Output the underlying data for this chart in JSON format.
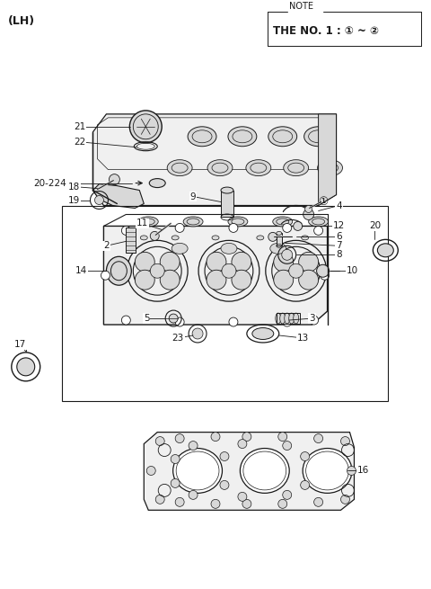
{
  "title": "(LH)",
  "background_color": "#ffffff",
  "note_text_line1": "NOTE",
  "note_text_line2": "THE NO. 1 : ① ~ ②",
  "fig_w": 4.8,
  "fig_h": 6.55,
  "dpi": 100,
  "line_color": "#1a1a1a",
  "fill_light": "#f0f0f0",
  "fill_mid": "#d8d8d8",
  "fill_dark": "#b0b0b0"
}
